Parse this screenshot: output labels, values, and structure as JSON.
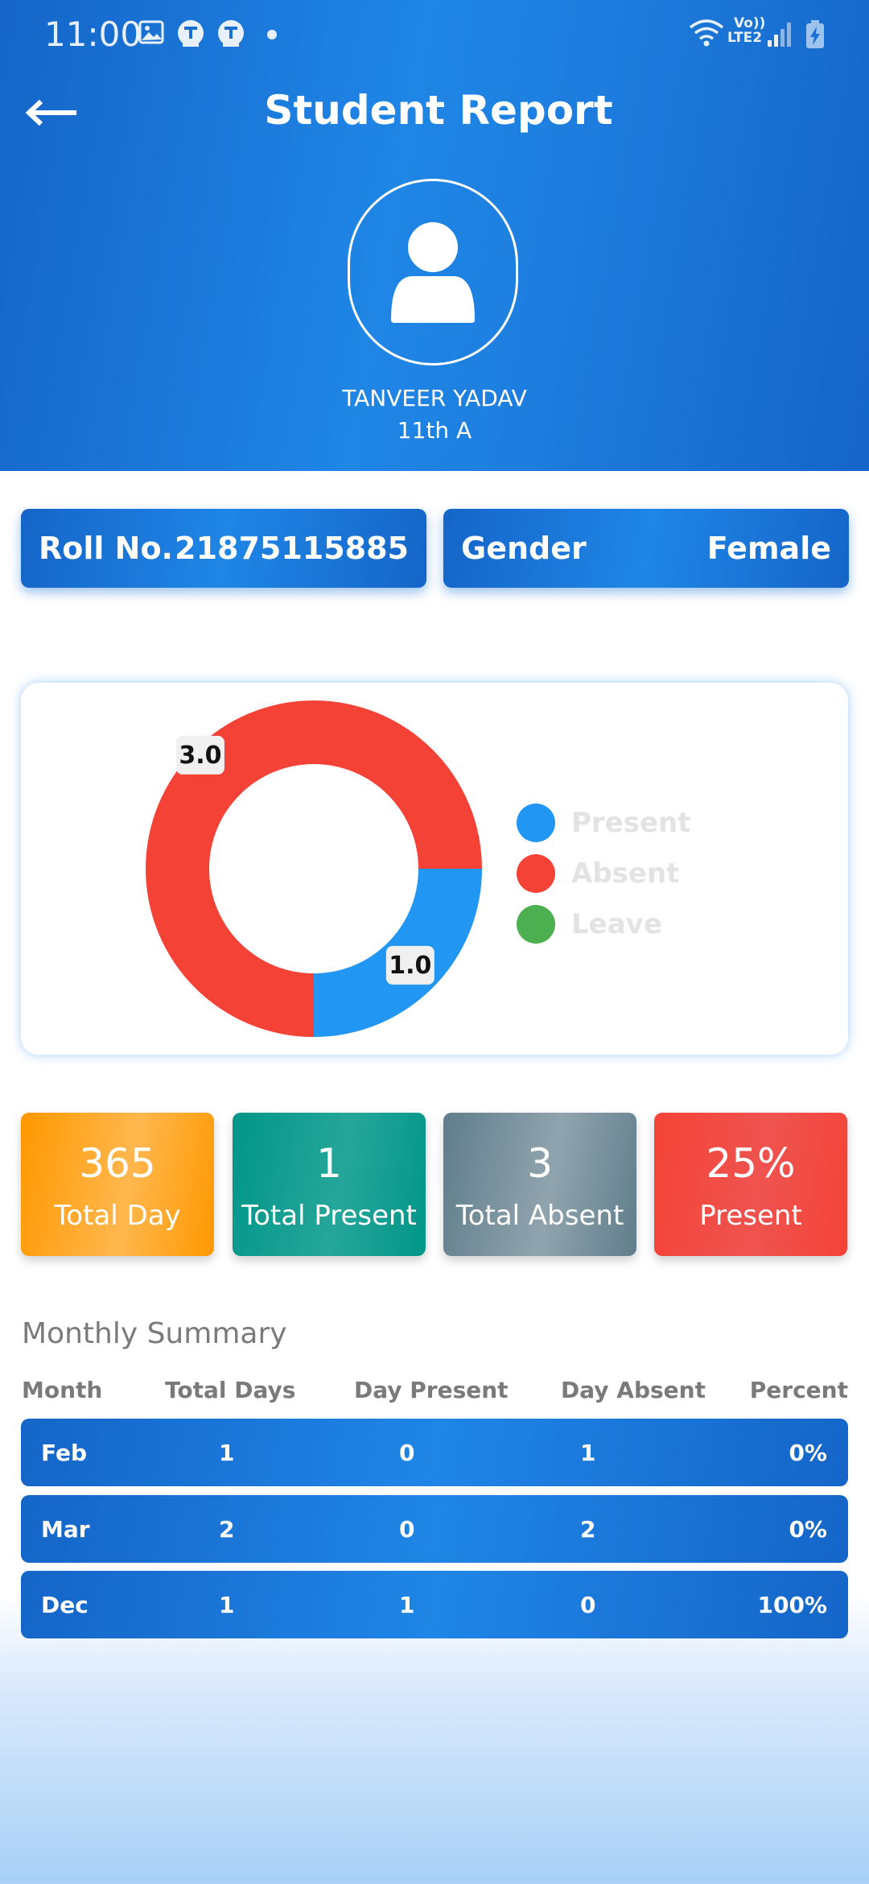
{
  "status_bar": {
    "time": "11:00",
    "icons": [
      "image-icon",
      "app-t-icon",
      "app-t-icon",
      "dot-icon",
      "wifi-icon",
      "volte-lte2-icon",
      "signal-icon",
      "battery-charging-icon"
    ],
    "volte_label": "Vo))",
    "lte_label": "LTE2"
  },
  "header": {
    "title": "Student Report",
    "back_icon": "arrow-left-icon",
    "avatar_icon": "person-icon",
    "student_name": "TANVEER YADAV",
    "student_class": "11th A"
  },
  "info": {
    "roll_label": "Roll No.",
    "roll_value": "21875115885",
    "gender_label": "Gender",
    "gender_value": "Female"
  },
  "chart_data": {
    "type": "pie",
    "donut": true,
    "categories": [
      "Present",
      "Absent",
      "Leave"
    ],
    "values": [
      1.0,
      3.0,
      0.0
    ],
    "data_labels": [
      "1.0",
      "3.0",
      ""
    ],
    "colors": [
      "#2196f3",
      "#f44336",
      "#4caf50"
    ],
    "legend_position": "right",
    "title": ""
  },
  "stats": [
    {
      "value": "365",
      "label": "Total Day",
      "color_start": "#ff9800",
      "color_end": "#ffb74d"
    },
    {
      "value": "1",
      "label": "Total Present",
      "color_start": "#009688",
      "color_end": "#26a69a"
    },
    {
      "value": "3",
      "label": "Total Absent",
      "color_start": "#607d8b",
      "color_end": "#90a4ae"
    },
    {
      "value": "25%",
      "label": "Present",
      "color_start": "#f44336",
      "color_end": "#ef5350"
    }
  ],
  "summary": {
    "title": "Monthly Summary",
    "columns": [
      "Month",
      "Total Days",
      "Day Present",
      "Day Absent",
      "Percent"
    ],
    "rows": [
      {
        "month": "Feb",
        "total_days": "1",
        "day_present": "0",
        "day_absent": "1",
        "percent": "0%"
      },
      {
        "month": "Mar",
        "total_days": "2",
        "day_present": "0",
        "day_absent": "2",
        "percent": "0%"
      },
      {
        "month": "Dec",
        "total_days": "1",
        "day_present": "1",
        "day_absent": "0",
        "percent": "100%"
      }
    ]
  }
}
